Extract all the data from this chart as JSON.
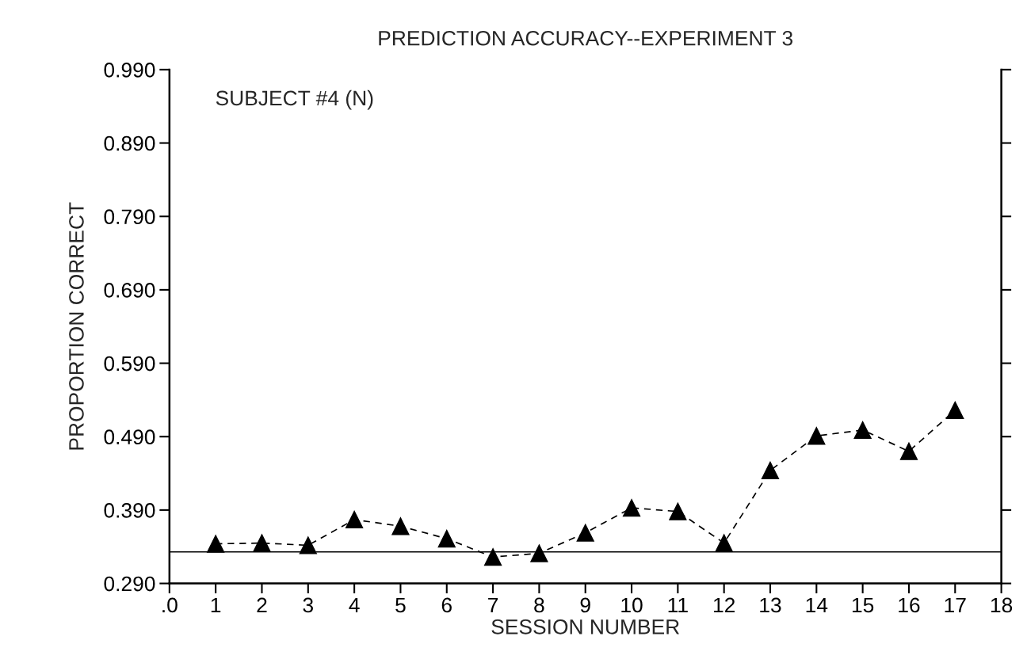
{
  "chart_data": {
    "type": "line",
    "title": "PREDICTION ACCURACY--EXPERIMENT 3",
    "xlabel": "SESSION NUMBER",
    "ylabel": "PROPORTION CORRECT",
    "annotations": [
      "SUBJECT #4 (N)"
    ],
    "x": [
      1,
      2,
      3,
      4,
      5,
      6,
      7,
      8,
      9,
      10,
      11,
      12,
      13,
      14,
      15,
      16,
      17
    ],
    "series": [
      {
        "color": "#000000",
        "values": [
          0.344,
          0.345,
          0.342,
          0.377,
          0.368,
          0.351,
          0.326,
          0.331,
          0.359,
          0.393,
          0.388,
          0.345,
          0.444,
          0.491,
          0.499,
          0.47,
          0.526
        ]
      }
    ],
    "marker": "triangle",
    "line_style": "dashed",
    "xlim": [
      0,
      18
    ],
    "xticks": [
      {
        "value": 0,
        "label": ".0"
      },
      1,
      2,
      3,
      4,
      5,
      6,
      7,
      8,
      9,
      10,
      11,
      12,
      13,
      14,
      15,
      16,
      17,
      18
    ],
    "ylim": [
      0.29,
      0.99
    ],
    "yticks": [
      {
        "value": 0.29,
        "label": "0.290"
      },
      {
        "value": 0.39,
        "label": "0.390"
      },
      {
        "value": 0.49,
        "label": "0.490"
      },
      {
        "value": 0.59,
        "label": "0.590"
      },
      {
        "value": 0.69,
        "label": "0.690"
      },
      {
        "value": 0.79,
        "label": "0.790"
      },
      {
        "value": 0.89,
        "label": "0.890"
      },
      {
        "value": 0.99,
        "label": "0.990"
      }
    ],
    "ref_lines": [
      {
        "axis": "y",
        "value": 0.333,
        "color": "#000000",
        "line_style": "solid"
      }
    ],
    "grid": false,
    "legend": false
  }
}
